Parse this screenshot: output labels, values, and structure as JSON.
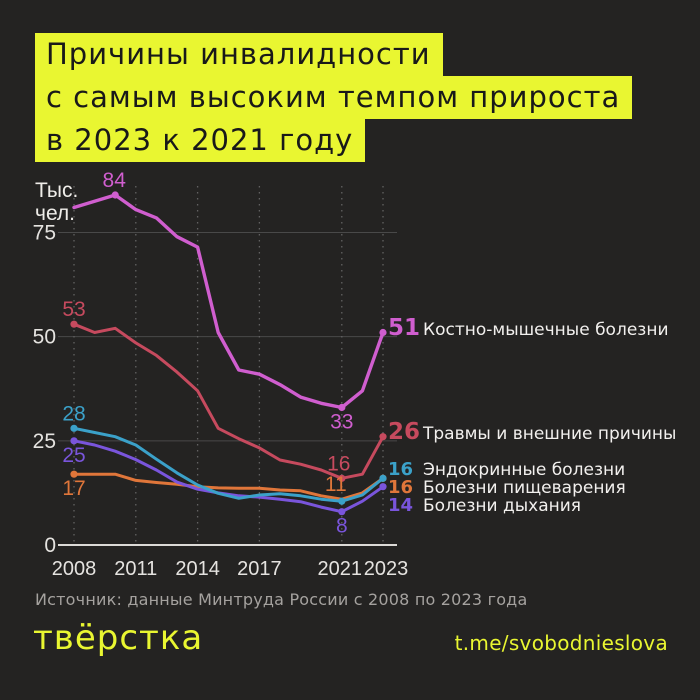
{
  "title": {
    "lines": [
      "Причины инвалидности",
      "с самым высоким темпом прироста",
      "в 2023 к 2021 году"
    ]
  },
  "colors": {
    "background": "#242322",
    "highlight_yellow": "#e9f631",
    "gridline": "#494949",
    "grid_dotted": "#626262",
    "axis": "#dcdad7",
    "tick_text": "#e5e3e0",
    "legend_text": "#f2f0ee",
    "magenta": "#d05ecf",
    "red": "#c64a5e",
    "teal": "#3ba1c9",
    "orange": "#e0763a",
    "purple": "#7a55dc"
  },
  "chart_data": {
    "type": "line",
    "title": "Причины инвалидности с самым высоким темпом прироста в 2023 к 2021 году",
    "ylabel_lines": [
      "Тыс.",
      "чел."
    ],
    "ylim": [
      0,
      88
    ],
    "grid": "horizontal solid + vertical dotted at labeled years",
    "legend_position": "right of line endpoints",
    "x": [
      2008,
      2009,
      2010,
      2011,
      2012,
      2013,
      2014,
      2015,
      2016,
      2017,
      2018,
      2019,
      2020,
      2021,
      2022,
      2023
    ],
    "x_ticks": [
      {
        "label": "2008",
        "year": 2008,
        "dx": 0
      },
      {
        "label": "2011",
        "year": 2011,
        "dx": 0
      },
      {
        "label": "2014",
        "year": 2014,
        "dx": 0
      },
      {
        "label": "2017",
        "year": 2017,
        "dx": 0
      },
      {
        "label": "2021",
        "year": 2021,
        "dx": -2
      },
      {
        "label": "2023",
        "year": 2023,
        "dx": 3
      }
    ],
    "y_ticks": [
      {
        "label": "75",
        "value": 75
      },
      {
        "label": "50",
        "value": 50
      },
      {
        "label": "25",
        "value": 25
      },
      {
        "label": "0",
        "value": 0
      }
    ],
    "series": [
      {
        "name": "Болезни пищеварения",
        "color": "#e0763a",
        "width": 3,
        "values": [
          17,
          17,
          17,
          15.5,
          15,
          14.6,
          14,
          13.7,
          13.6,
          13.6,
          13.2,
          13,
          11.8,
          11,
          12.5,
          16
        ],
        "dot_years": [
          2008,
          2023
        ]
      },
      {
        "name": "Болезни дыхания",
        "color": "#7a55dc",
        "width": 3,
        "values": [
          25,
          24,
          22.5,
          20.5,
          18,
          15.1,
          13.4,
          12.5,
          11.8,
          11.5,
          11,
          10.4,
          9.1,
          8,
          10.5,
          14
        ],
        "dot_years": [
          2008,
          2021,
          2023
        ]
      },
      {
        "name": "Эндокринные болезни",
        "color": "#3ba1c9",
        "width": 3,
        "values": [
          28,
          27,
          26,
          24,
          20.6,
          17.3,
          14.4,
          12.4,
          11.2,
          12,
          12.3,
          11.8,
          11,
          10.5,
          12,
          16
        ],
        "dot_years": [
          2008,
          2021,
          2023
        ]
      },
      {
        "name": "Травмы и внешние причины",
        "color": "#c64a5e",
        "width": 3,
        "values": [
          53,
          51,
          52,
          48.5,
          45.5,
          41.5,
          37,
          28,
          25.5,
          23.3,
          20.4,
          19.4,
          18,
          16,
          17,
          26
        ],
        "dot_years": [
          2008,
          2021,
          2023
        ]
      },
      {
        "name": "Костно-мышечные болезни",
        "color": "#d05ecf",
        "width": 3.4,
        "values": [
          81,
          82.5,
          84,
          80.5,
          78.5,
          74,
          71.5,
          51,
          42,
          41,
          38.5,
          35.5,
          34,
          33,
          37,
          51
        ],
        "dot_years": [
          2010,
          2021,
          2023
        ]
      }
    ],
    "point_labels": [
      {
        "text": "84",
        "series": 4,
        "year": 2010,
        "pos": "above",
        "dx": -1
      },
      {
        "text": "53",
        "series": 3,
        "year": 2008,
        "pos": "above",
        "dx": 0
      },
      {
        "text": "28",
        "series": 2,
        "year": 2008,
        "pos": "above",
        "dx": 0
      },
      {
        "text": "25",
        "series": 1,
        "year": 2008,
        "pos": "below",
        "dx": 0
      },
      {
        "text": "17",
        "series": 0,
        "year": 2008,
        "pos": "below",
        "dx": 0
      },
      {
        "text": "33",
        "series": 4,
        "year": 2021,
        "pos": "below",
        "dx": 0
      },
      {
        "text": "16",
        "series": 3,
        "year": 2021,
        "pos": "above",
        "dx": -3
      },
      {
        "text": "11",
        "series": 0,
        "year": 2021,
        "pos": "above",
        "dx": -6
      },
      {
        "text": "8",
        "series": 1,
        "year": 2021,
        "pos": "below",
        "dx": 0
      }
    ]
  },
  "legend": {
    "items": [
      {
        "value": "51",
        "label": "Костно-мышечные болезни",
        "color": "#d05ecf",
        "size": "large"
      },
      {
        "value": "26",
        "label": "Травмы и внешние причины",
        "color": "#c64a5e",
        "size": "large"
      },
      {
        "value": "16",
        "label": "Эндокринные болезни",
        "color": "#3ba1c9",
        "size": "small"
      },
      {
        "value": "16",
        "label": "Болезни пищеварения",
        "color": "#e0763a",
        "size": "small"
      },
      {
        "value": "14",
        "label": "Болезни дыхания",
        "color": "#7a55dc",
        "size": "small"
      }
    ]
  },
  "footer": {
    "source": "Источник: данные Минтруда России с 2008 по 2023 года",
    "logo": "твёрстка",
    "link": "t.me/svobodnieslova"
  }
}
